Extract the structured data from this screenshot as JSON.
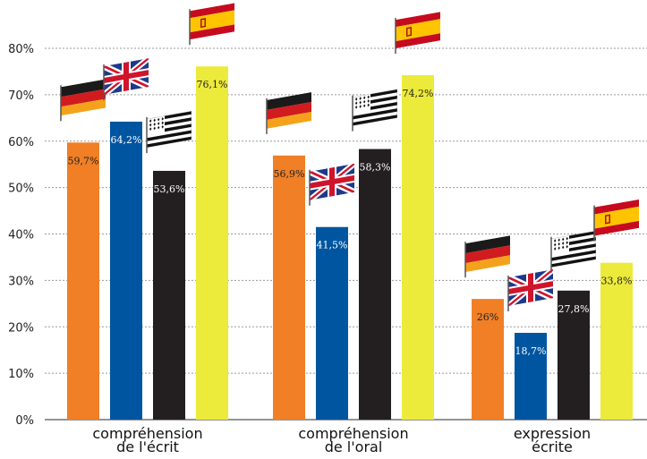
{
  "chart_data": {
    "type": "bar",
    "categories": [
      [
        "compréhension",
        "de l'écrit"
      ],
      [
        "compréhension",
        "de l'oral"
      ],
      [
        "expression",
        "écrite"
      ]
    ],
    "series": [
      {
        "name": "",
        "flag": "germany-flag-icon",
        "color": "#f07f26",
        "label_color": "#222222",
        "values": [
          59.7,
          56.9,
          26
        ],
        "labels": [
          "59,7%",
          "56,9%",
          "26%"
        ]
      },
      {
        "name": "",
        "flag": "uk-flag-icon",
        "color": "#0055a0",
        "label_color": "#ffffff",
        "values": [
          64.2,
          41.5,
          18.7
        ],
        "labels": [
          "64,2%",
          "41,5%",
          "18,7%"
        ]
      },
      {
        "name": "",
        "flag": "brittany-flag-icon",
        "color": "#231f20",
        "label_color": "#ffffff",
        "values": [
          53.6,
          58.3,
          27.8
        ],
        "labels": [
          "53,6%",
          "58,3%",
          "27,8%"
        ]
      },
      {
        "name": "",
        "flag": "spain-flag-icon",
        "color": "#ecea3a",
        "label_color": "#222222",
        "values": [
          76.1,
          74.2,
          33.8
        ],
        "labels": [
          "76,1%",
          "74,2%",
          "33,8%"
        ]
      }
    ],
    "y_ticks": [
      "0%",
      "10%",
      "20%",
      "30%",
      "40%",
      "50%",
      "60%",
      "70%",
      "80%"
    ],
    "ylim": [
      0,
      80
    ],
    "grid": "horizontal dotted",
    "legend": "flags above bars",
    "title": "",
    "xlabel": "",
    "ylabel": ""
  }
}
